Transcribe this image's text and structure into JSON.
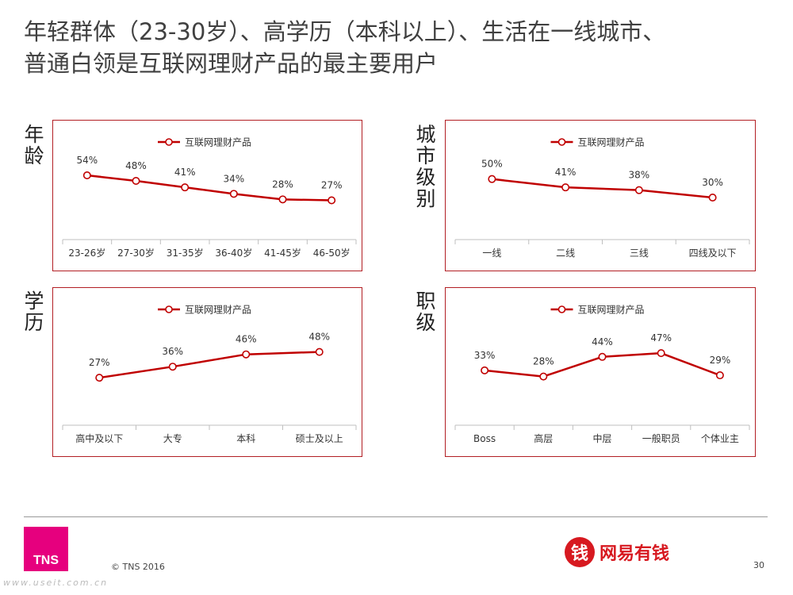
{
  "title": {
    "line1": "年轻群体（23-30岁）、高学历（本科以上）、生活在一线城市、",
    "line2": "普通白领是互联网理财产品的最主要用户"
  },
  "labels": {
    "age": "年龄",
    "city": "城市级别",
    "edu": "学历",
    "job": "职级"
  },
  "colors": {
    "line": "#c00000",
    "border": "#b21f24",
    "axis": "#bfbfbf"
  },
  "chart_data": [
    {
      "id": "age",
      "type": "line",
      "legend": "互联网理财产品",
      "legend_position": "top",
      "categories": [
        "23-26岁",
        "27-30岁",
        "31-35岁",
        "36-40岁",
        "41-45岁",
        "46-50岁"
      ],
      "series": [
        {
          "name": "互联网理财产品",
          "values": [
            54,
            48,
            41,
            34,
            28,
            27
          ]
        }
      ],
      "data_labels": [
        "54%",
        "48%",
        "41%",
        "34%",
        "28%",
        "27%"
      ],
      "unit": "%"
    },
    {
      "id": "city",
      "type": "line",
      "legend": "互联网理财产品",
      "legend_position": "top",
      "categories": [
        "一线",
        "二线",
        "三线",
        "四线及以下"
      ],
      "series": [
        {
          "name": "互联网理财产品",
          "values": [
            50,
            41,
            38,
            30
          ]
        }
      ],
      "data_labels": [
        "50%",
        "41%",
        "38%",
        "30%"
      ],
      "unit": "%"
    },
    {
      "id": "edu",
      "type": "line",
      "legend": "互联网理财产品",
      "legend_position": "top",
      "categories": [
        "高中及以下",
        "大专",
        "本科",
        "硕士及以上"
      ],
      "series": [
        {
          "name": "互联网理财产品",
          "values": [
            27,
            36,
            46,
            48
          ]
        }
      ],
      "data_labels": [
        "27%",
        "36%",
        "46%",
        "48%"
      ],
      "unit": "%"
    },
    {
      "id": "job",
      "type": "line",
      "legend": "互联网理财产品",
      "legend_position": "top",
      "categories": [
        "Boss",
        "高层",
        "中层",
        "一般职员",
        "个体业主"
      ],
      "series": [
        {
          "name": "互联网理财产品",
          "values": [
            33,
            28,
            44,
            47,
            29
          ]
        }
      ],
      "data_labels": [
        "33%",
        "28%",
        "44%",
        "47%",
        "29%"
      ],
      "unit": "%"
    }
  ],
  "footer": {
    "logo": "TNS",
    "copyright": "© TNS 2016",
    "url": "www.useit.com.cn",
    "brand_icon": "钱",
    "brand_text": "网易有钱",
    "page": "30"
  }
}
